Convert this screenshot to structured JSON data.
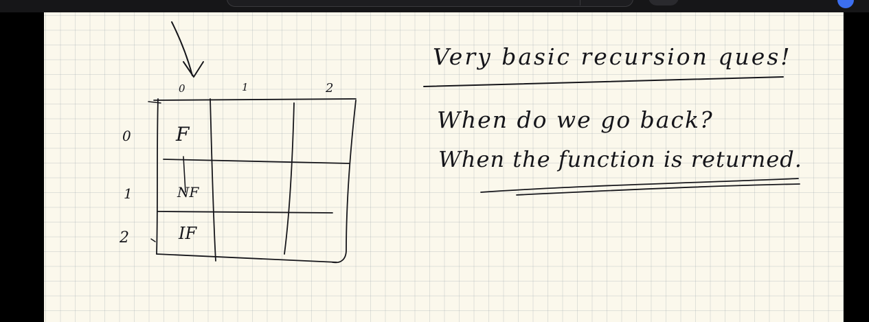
{
  "grid_sketch": {
    "col_labels": [
      "0",
      "1",
      "2"
    ],
    "row_labels": [
      "0",
      "1",
      "2"
    ],
    "cells": [
      "F",
      "NF",
      "IF"
    ]
  },
  "notes": {
    "heading": "Very basic recursion ques!",
    "question": "When do we go back?",
    "answer": "When the function is returned."
  }
}
